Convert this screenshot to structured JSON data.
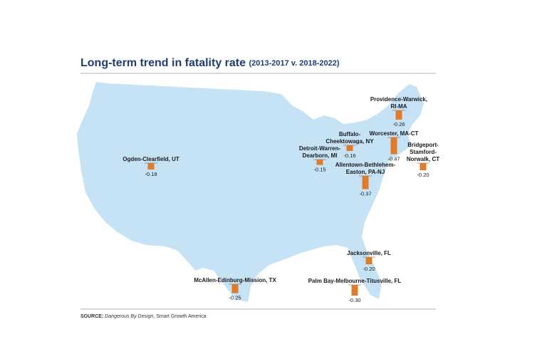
{
  "title": "Long-term trend in fatality rate",
  "subtitle": "(2013-2017 v. 2018-2022)",
  "source": {
    "label": "SOURCE:",
    "work": "Dangerous By Design",
    "publisher": ", Smart Growth America"
  },
  "metros": [
    {
      "name": [
        "Providence-Warwick,",
        "RI-MA"
      ],
      "value": -0.26,
      "label": "-0.26"
    },
    {
      "name": [
        "Buffalo-",
        "Cheektowaga, NY"
      ],
      "value": -0.16,
      "label": "-0.16"
    },
    {
      "name": [
        "Worcester, MA-CT"
      ],
      "value": -0.47,
      "label": "-0.47"
    },
    {
      "name": [
        "Bridgeport-",
        "Stamford-",
        "Norwalk, CT"
      ],
      "value": -0.2,
      "label": "-0.20"
    },
    {
      "name": [
        "Detroit-Warren-",
        "Dearborn, MI"
      ],
      "value": -0.15,
      "label": "-0.15"
    },
    {
      "name": [
        "Allentown-Bethlehem-",
        "Easton, PA-NJ"
      ],
      "value": -0.37,
      "label": "-0.37"
    },
    {
      "name": [
        "Ogden-Clearfield, UT"
      ],
      "value": -0.18,
      "label": "-0.18"
    },
    {
      "name": [
        "Jacksonville, FL"
      ],
      "value": -0.2,
      "label": "-0.20"
    },
    {
      "name": [
        "McAllen-Edinburg-Mission, TX"
      ],
      "value": -0.25,
      "label": "-0.25"
    },
    {
      "name": [
        "Palm Bay-Melbourne-Titusville, FL"
      ],
      "value": -0.3,
      "label": "-0.30"
    }
  ]
}
